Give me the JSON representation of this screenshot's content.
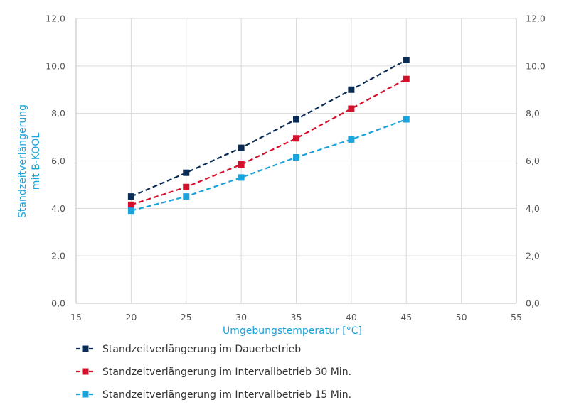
{
  "chart_data": {
    "type": "line",
    "xlabel": "Umgebungstemperatur [°C]",
    "ylabel_line1": "Standzeitverlängerung",
    "ylabel_line2": "mit B-KOOL",
    "xlim": [
      15,
      55
    ],
    "ylim": [
      0,
      12
    ],
    "x_ticks": [
      15,
      20,
      25,
      30,
      35,
      40,
      45,
      50,
      55
    ],
    "x_tick_labels": [
      "15",
      "20",
      "25",
      "30",
      "35",
      "40",
      "45",
      "50",
      "55"
    ],
    "y_ticks": [
      0,
      2,
      4,
      6,
      8,
      10,
      12
    ],
    "y_tick_labels": [
      "0,0",
      "2,0",
      "4,0",
      "6,0",
      "8,0",
      "10,0",
      "12,0"
    ],
    "grid": true,
    "legend_position": "bottom",
    "x": [
      20,
      25,
      30,
      35,
      40,
      45
    ],
    "series": [
      {
        "name": "Standzeitverlängerung im Dauerbetrieb",
        "color": "#0b2d55",
        "values": [
          4.5,
          5.5,
          6.55,
          7.75,
          9.0,
          10.25
        ]
      },
      {
        "name": "Standzeitverlängerung im Intervallbetrieb 30 Min.",
        "color": "#d4102c",
        "values": [
          4.15,
          4.9,
          5.85,
          6.95,
          8.2,
          9.45
        ]
      },
      {
        "name": "Standzeitverlängerung im Intervallbetrieb 15 Min.",
        "color": "#1ba3dc",
        "values": [
          3.9,
          4.5,
          5.3,
          6.15,
          6.9,
          7.75
        ]
      }
    ]
  }
}
